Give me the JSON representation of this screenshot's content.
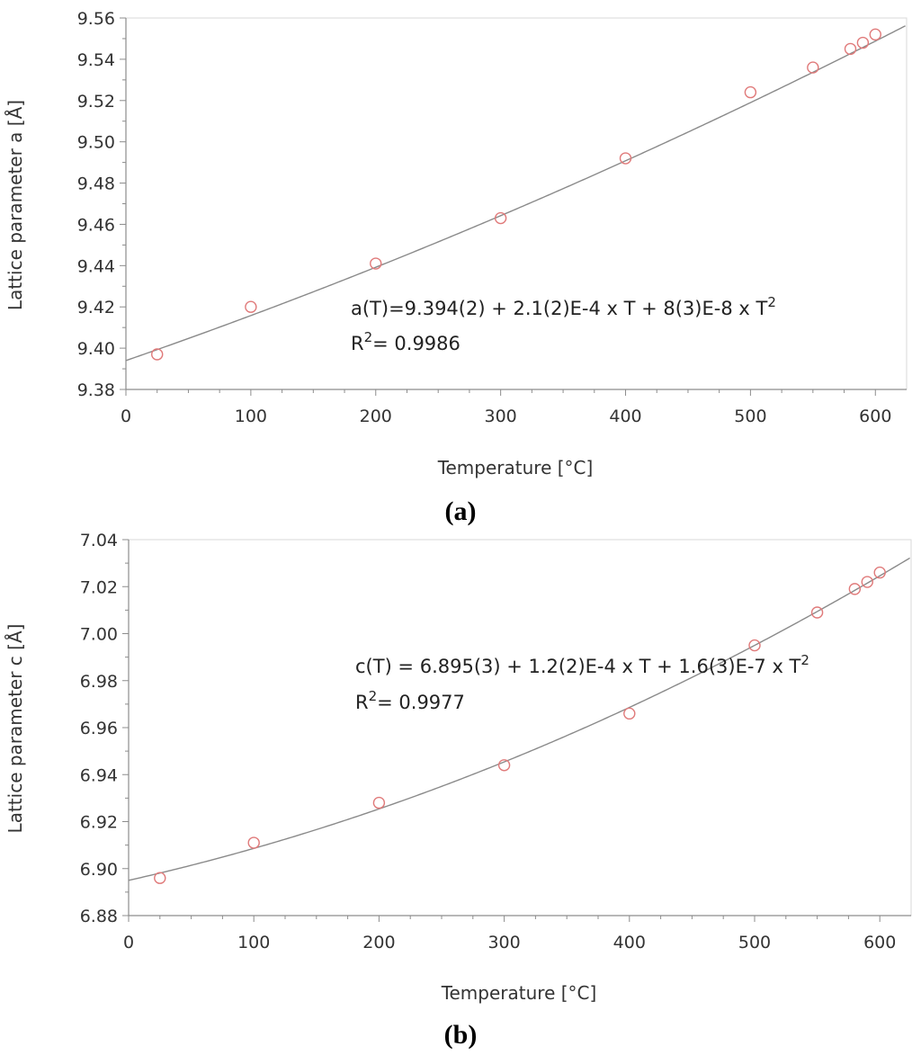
{
  "chart_data": [
    {
      "type": "scatter",
      "panel_label": "a",
      "xlabel": "Temperature [°C]",
      "ylabel": "Lattice parameter a [Å]",
      "xlim": [
        0,
        625
      ],
      "ylim": [
        9.38,
        9.56
      ],
      "x_ticks": [
        0,
        100,
        200,
        300,
        400,
        500,
        600
      ],
      "y_ticks": [
        9.38,
        9.4,
        9.42,
        9.44,
        9.46,
        9.48,
        9.5,
        9.52,
        9.54,
        9.56
      ],
      "grid": false,
      "series": [
        {
          "x": [
            25,
            100,
            200,
            300,
            400,
            500,
            550,
            580,
            590,
            600
          ],
          "y": [
            9.397,
            9.42,
            9.441,
            9.463,
            9.492,
            9.524,
            9.536,
            9.545,
            9.548,
            9.552
          ],
          "marker": "open-circle",
          "color": "#e07a7a"
        }
      ],
      "fit": {
        "coefficients": [
          9.394,
          0.00021,
          8e-08
        ],
        "color": "#8a8a8a"
      },
      "equation": {
        "main": "a(T)=9.394(2) + 2.1(2)E-4 x T + 8(3)E-8 x T",
        "superscript": "2",
        "r2_prefix": "R",
        "r2_superscript": "2",
        "r2_value": "= 0.9986"
      }
    },
    {
      "type": "scatter",
      "panel_label": "b",
      "xlabel": "Temperature [°C]",
      "ylabel": "Lattice parameter c [Å]",
      "xlim": [
        0,
        625
      ],
      "ylim": [
        6.88,
        7.04
      ],
      "x_ticks": [
        0,
        100,
        200,
        300,
        400,
        500,
        600
      ],
      "y_ticks": [
        6.88,
        6.9,
        6.92,
        6.94,
        6.96,
        6.98,
        7.0,
        7.02,
        7.04
      ],
      "grid": false,
      "series": [
        {
          "x": [
            25,
            100,
            200,
            300,
            400,
            500,
            550,
            580,
            590,
            600
          ],
          "y": [
            6.896,
            6.911,
            6.928,
            6.944,
            6.966,
            6.995,
            7.009,
            7.019,
            7.022,
            7.026
          ],
          "marker": "open-circle",
          "color": "#e07a7a"
        }
      ],
      "fit": {
        "coefficients": [
          6.895,
          0.00012,
          1.6e-07
        ],
        "color": "#8a8a8a"
      },
      "equation": {
        "main": "c(T) = 6.895(3) + 1.2(2)E-4 x T + 1.6(3)E-7 x T",
        "superscript": "2",
        "r2_prefix": "R",
        "r2_superscript": "2",
        "r2_value": "= 0.9977"
      }
    }
  ]
}
